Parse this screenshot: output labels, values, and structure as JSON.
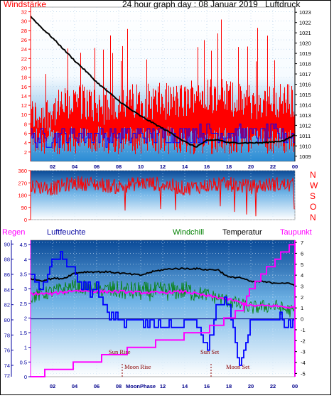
{
  "title": "24 hour graph day : 08 Januar 2019",
  "colors": {
    "wind": "#ff0000",
    "gust_bars": "#ff0000",
    "wind_avg": "#0000ff",
    "pressure": "#000000",
    "humidity": "#0000ff",
    "rain": "#ff00ff",
    "windchill": "#008000",
    "temperature": "#000000",
    "dewpoint": "#ff00ff",
    "wind_dir": "#ff0000",
    "plot_bg_top": "#ffffff",
    "plot_bg_bottom": "#2b8fd6",
    "panel_bg_top": "#0d4d9a",
    "panel_bg_bottom": "#ffffff"
  },
  "x_ticks": [
    "02",
    "04",
    "06",
    "08",
    "10",
    "12",
    "14",
    "16",
    "18",
    "20",
    "22",
    "00"
  ],
  "panel1": {
    "left_label": "Windstärke",
    "right_label": "Luftdruck",
    "left_ticks": [
      "2",
      "4",
      "6",
      "8",
      "10",
      "12",
      "14",
      "16",
      "18",
      "20",
      "22",
      "24",
      "26",
      "28",
      "30",
      "32"
    ],
    "right_ticks": [
      "1009",
      "1010",
      "1011",
      "1012",
      "1013",
      "1014",
      "1015",
      "1016",
      "1017",
      "1018",
      "1019",
      "1020",
      "1021",
      "1022",
      "1023"
    ]
  },
  "panel2": {
    "left_ticks": [
      "0",
      "90",
      "180",
      "270",
      "360"
    ],
    "compass": [
      "N",
      "W",
      "S",
      "O",
      "N"
    ]
  },
  "panel3": {
    "rain_label": "Regen",
    "humidity_label": "Luftfeuchte",
    "windchill_label": "Windchill",
    "temperature_label": "Temperatur",
    "dewpoint_label": "Taupunkt",
    "humidity_ticks": [
      "74",
      "76",
      "78",
      "80",
      "82",
      "84",
      "86",
      "88",
      "90"
    ],
    "rain_ticks": [
      "0",
      "0.5",
      "1",
      "1.5",
      "2",
      "2.5",
      "3",
      "3.5",
      "4",
      "4.5"
    ],
    "temp_ticks": [
      "-5",
      "-4",
      "-3",
      "-2",
      "-1",
      "0",
      "1",
      "2",
      "3",
      "4",
      "5",
      "6",
      "7"
    ],
    "extra_tick": "72",
    "sun_rise": "Sun Rise",
    "sun_set": "Sun Set",
    "moon_rise": "Moon Rise",
    "moon_set": "Moon Set",
    "moon_phase": "MoonPhase"
  },
  "chart_data": [
    {
      "type": "line",
      "title": "24 hour graph day : 08 Januar 2019",
      "series": [
        {
          "name": "Windstärke",
          "x": [
            0,
            1,
            2,
            3,
            4,
            5,
            6,
            7,
            8,
            9,
            10,
            11,
            12,
            13,
            14,
            15,
            16,
            17,
            18,
            19,
            20,
            21,
            22,
            23,
            24
          ],
          "values": [
            9,
            9,
            10,
            11,
            12,
            12,
            11,
            11,
            12,
            12,
            12,
            12,
            12,
            12,
            12,
            14,
            14,
            13,
            13,
            12,
            12,
            12,
            12,
            12,
            12
          ]
        },
        {
          "name": "Luftdruck",
          "x": [
            0,
            1,
            2,
            3,
            4,
            5,
            6,
            7,
            8,
            9,
            10,
            11,
            12,
            13,
            14,
            15,
            16,
            17,
            18,
            19,
            20,
            21,
            22,
            23,
            24
          ],
          "values": [
            1022.6,
            1021.5,
            1020.5,
            1019.4,
            1018.3,
            1017.3,
            1016.2,
            1015.3,
            1014.4,
            1013.6,
            1012.9,
            1012.3,
            1011.7,
            1011.1,
            1010.4,
            1009.9,
            1010.5,
            1010.6,
            1010.3,
            1010.3,
            1010.3,
            1010.3,
            1010.4,
            1010.5,
            1011.1
          ]
        }
      ],
      "xlim": [
        0,
        24
      ],
      "ylim_left": [
        0,
        33
      ],
      "ylim_right": [
        1008.5,
        1023.5
      ]
    },
    {
      "type": "scatter",
      "title": "",
      "series": [
        {
          "name": "",
          "x": [
            0,
            2,
            4,
            6,
            8,
            10,
            12,
            14,
            16,
            18,
            20,
            22,
            24
          ],
          "values": [
            250,
            230,
            270,
            260,
            240,
            270,
            260,
            230,
            250,
            260,
            240,
            260,
            250
          ]
        }
      ],
      "xlim": [
        0,
        24
      ],
      "ylim": [
        0,
        360
      ]
    },
    {
      "type": "line",
      "title": "",
      "series": [
        {
          "name": "Luftfeuchte",
          "x": [
            0,
            1,
            2,
            3,
            4,
            5,
            6,
            7,
            8,
            9,
            10,
            11,
            12,
            13,
            14,
            15,
            16,
            17,
            18,
            19,
            20,
            21,
            22,
            23,
            24
          ],
          "values": [
            86,
            84,
            88,
            88,
            86,
            84,
            84,
            81,
            80,
            80,
            80,
            80,
            79,
            79,
            80,
            80,
            76,
            82,
            82,
            74,
            80,
            80,
            80,
            80,
            79
          ]
        },
        {
          "name": "Regen",
          "x": [
            0,
            1,
            2,
            3,
            4,
            5,
            6,
            7,
            8,
            9,
            10,
            11,
            12,
            13,
            14,
            15,
            16,
            17,
            18,
            19,
            20,
            21,
            22,
            23,
            24
          ],
          "values": [
            0,
            0.1,
            0.2,
            0.3,
            0.4,
            0.5,
            0.6,
            0.7,
            0.8,
            0.9,
            1.0,
            1.1,
            1.2,
            1.3,
            1.4,
            1.5,
            1.6,
            1.8,
            2.0,
            2.3,
            3.0,
            3.5,
            3.9,
            4.3,
            4.5
          ]
        },
        {
          "name": "Windchill",
          "x": [
            0,
            2,
            4,
            6,
            8,
            10,
            12,
            14,
            16,
            18,
            20,
            22,
            24
          ],
          "values": [
            2.0,
            2.5,
            3.0,
            2.7,
            2.6,
            2.5,
            2.5,
            2.6,
            2.2,
            1.6,
            1.0,
            1.2,
            0.6
          ]
        },
        {
          "name": "Temperatur",
          "x": [
            0,
            1,
            2,
            3,
            4,
            5,
            6,
            7,
            8,
            9,
            10,
            11,
            12,
            13,
            14,
            15,
            16,
            17,
            18,
            19,
            20,
            21,
            22,
            23,
            24
          ],
          "values": [
            3.7,
            3.5,
            3.7,
            3.7,
            4.2,
            4.3,
            4.3,
            4.3,
            4.2,
            4.1,
            4.0,
            4.3,
            4.5,
            4.6,
            4.6,
            4.6,
            4.5,
            4.5,
            3.8,
            3.8,
            3.4,
            3.4,
            3.3,
            3.3,
            3.1
          ]
        },
        {
          "name": "Taupunkt",
          "x": [
            0,
            2,
            4,
            6,
            8,
            10,
            12,
            14,
            16,
            18,
            20,
            22,
            24
          ],
          "values": [
            2.3,
            2.3,
            2.6,
            2.5,
            2.5,
            2.4,
            2.4,
            2.5,
            2.1,
            1.8,
            1.2,
            1.2,
            1.0
          ]
        }
      ],
      "xlim": [
        0,
        24
      ]
    }
  ]
}
